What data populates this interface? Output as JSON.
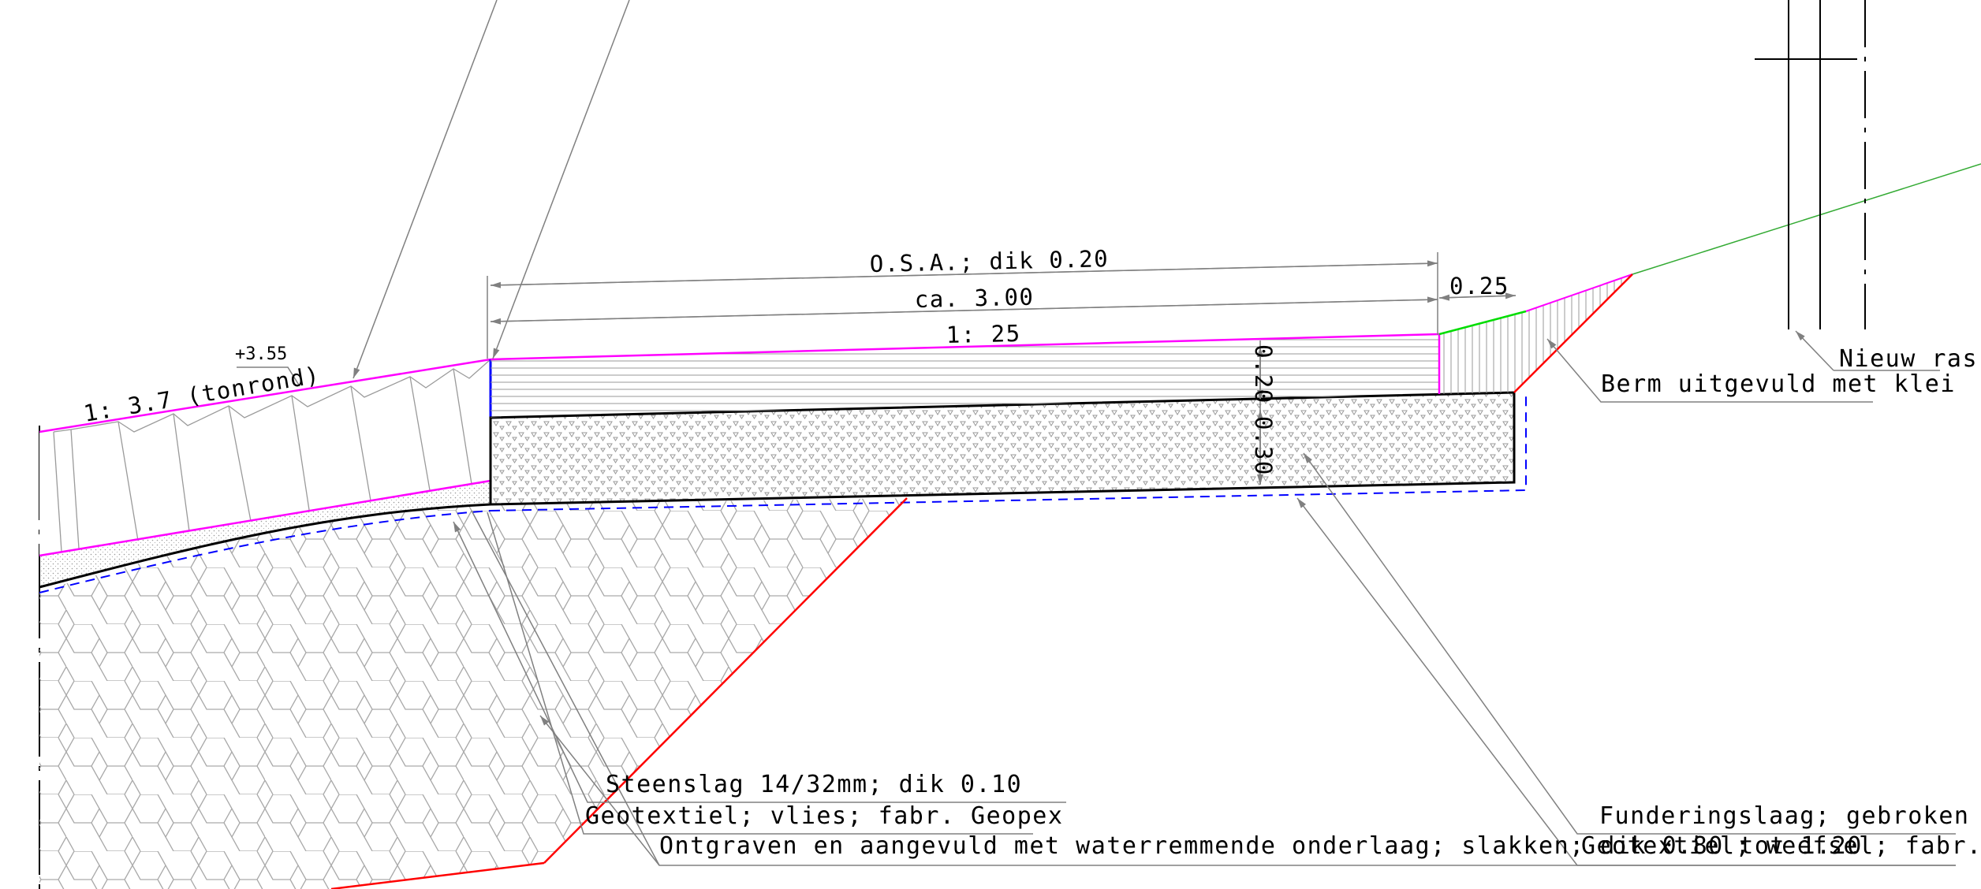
{
  "dimensions": {
    "osa": "O.S.A.;  dik  0.20",
    "ca_width": "ca.  3.00",
    "slope_top": "1: 25",
    "verge_width": "0.25",
    "thickness_top": "0.20",
    "thickness_bottom": "0.30",
    "level": "+3.55",
    "slope_left": "1: 3.7  (tonrond)"
  },
  "annotations": {
    "nieuw": "Nieuw  ras",
    "berm": "Berm  uitgevuld  met  klei",
    "steenslag": "Steenslag  14/32mm;  dik  0.10",
    "geotextiel_vlies": "Geotextiel;  vlies;  fabr.  Geopex",
    "ontgraven": "Ontgraven  en  aangevuld  met  waterremmende  onderlaag;  slakken;  dik  0.80  tot  1.20",
    "fundering": "Funderingslaag;  gebroken  betc",
    "geotextiel_weefsel": "Geotextiel;  weefsel;  fabr.  Geope"
  },
  "colors": {
    "asphalt_edge": "#ff00ff",
    "excavation": "#ff0000",
    "geotextile": "#0000ff",
    "verge": "#00dd00",
    "leader": "#808080",
    "hatch": "#9a9a9a"
  }
}
